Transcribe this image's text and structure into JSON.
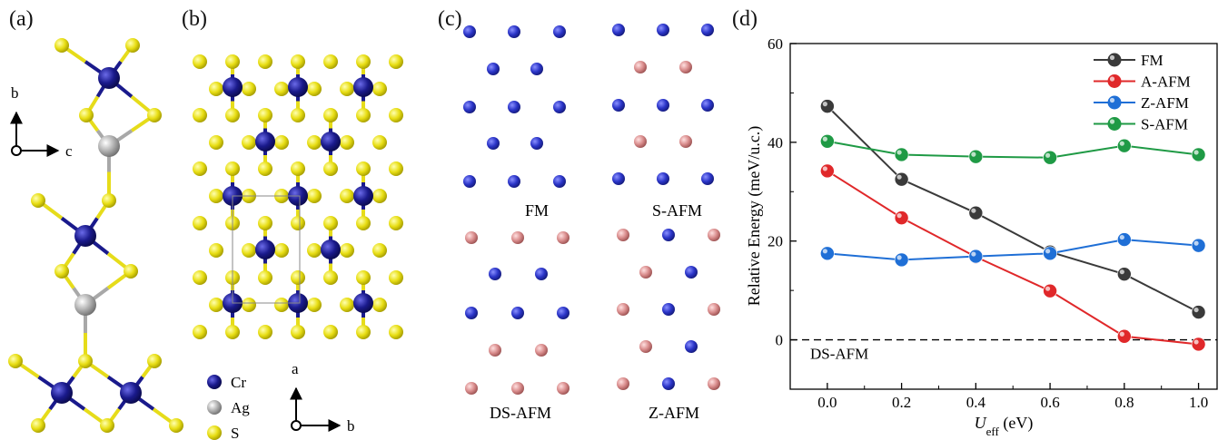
{
  "panels": {
    "a": {
      "label": "(a)",
      "axis_vertical": "b",
      "axis_horizontal": "c"
    },
    "b": {
      "label": "(b)",
      "legend": [
        {
          "element": "Cr",
          "color": "#1a1a8c"
        },
        {
          "element": "Ag",
          "color": "#a8a8a8"
        },
        {
          "element": "S",
          "color": "#e6dc1a"
        }
      ],
      "axis_vertical": "a",
      "axis_horizontal": "b"
    },
    "c": {
      "label": "(c)",
      "configs": [
        "FM",
        "S-AFM",
        "DS-AFM",
        "Z-AFM"
      ],
      "spin_up_color": "#2b35c8",
      "spin_down_color": "#d98c8c"
    },
    "d": {
      "label": "(d)"
    }
  },
  "chart_data": {
    "type": "line",
    "xlabel_main": "U",
    "xlabel_sub": "eff",
    "xlabel_unit": " (eV)",
    "ylabel": "Relative Energy (meV/u.c.)",
    "xlim": [
      -0.1,
      1.05
    ],
    "ylim": [
      -10,
      60
    ],
    "xticks": [
      "0.0",
      "0.2",
      "0.4",
      "0.6",
      "0.8",
      "1.0"
    ],
    "yticks": [
      "0",
      "20",
      "40",
      "60"
    ],
    "x": [
      0.0,
      0.2,
      0.4,
      0.6,
      0.8,
      1.0
    ],
    "baseline": {
      "y": 0,
      "label": "DS-AFM"
    },
    "legend_position": "top-right",
    "series": [
      {
        "name": "FM",
        "color": "#3a3a3a",
        "values": [
          47.3,
          32.5,
          25.7,
          17.8,
          13.3,
          5.6
        ]
      },
      {
        "name": "A-AFM",
        "color": "#e0282a",
        "values": [
          34.2,
          24.7,
          16.8,
          9.9,
          0.7,
          -0.9
        ]
      },
      {
        "name": "Z-AFM",
        "color": "#1f6fd6",
        "values": [
          17.5,
          16.2,
          16.9,
          17.5,
          20.3,
          19.1
        ]
      },
      {
        "name": "S-AFM",
        "color": "#1f9a45",
        "values": [
          40.2,
          37.5,
          37.1,
          36.9,
          39.3,
          37.5
        ]
      }
    ]
  }
}
